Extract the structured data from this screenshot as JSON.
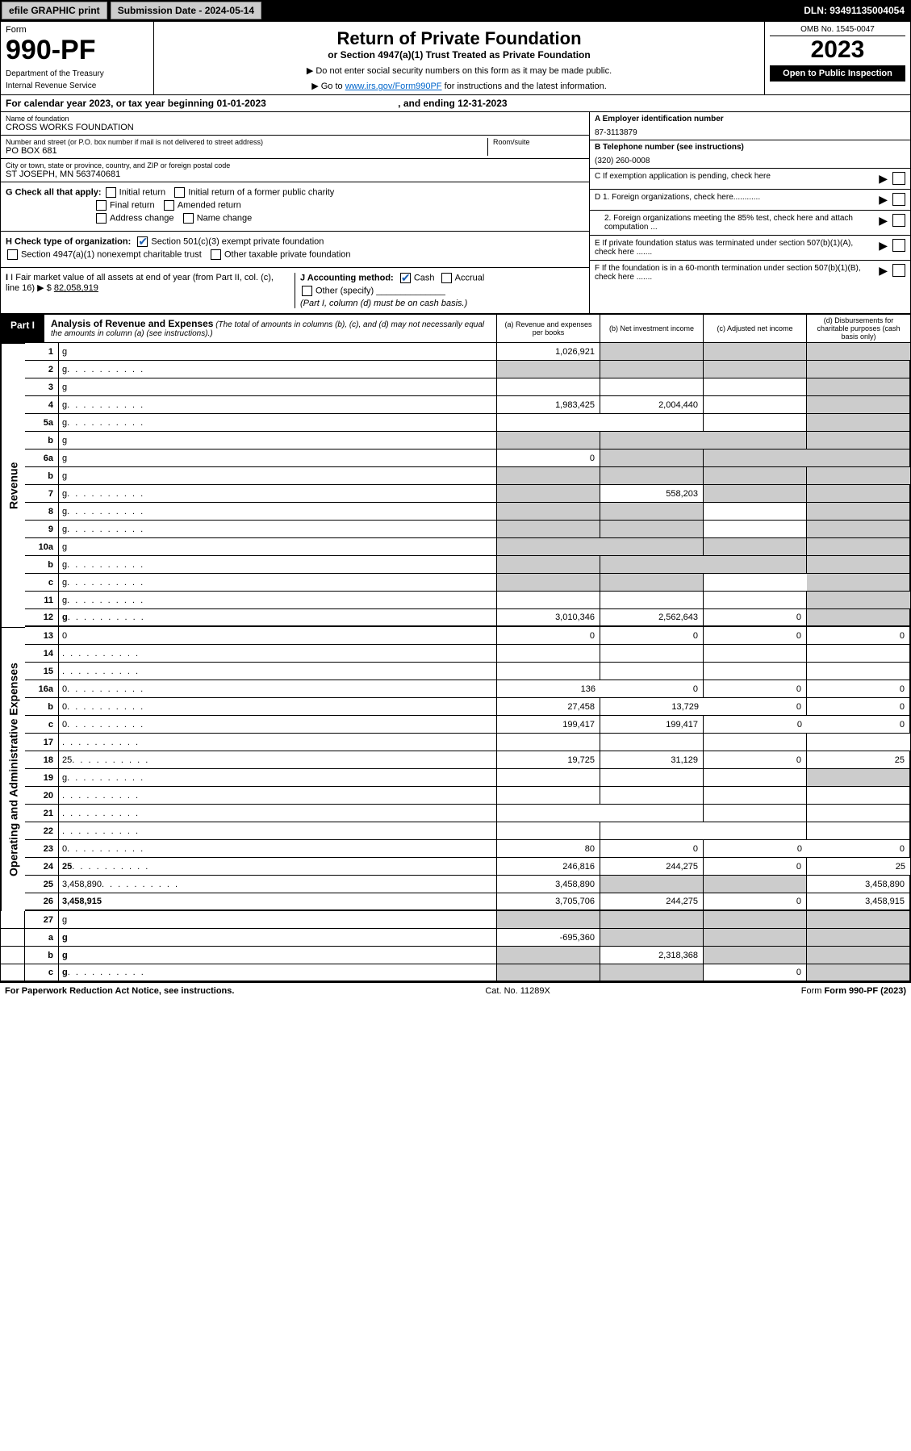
{
  "topbar": {
    "efile": "efile GRAPHIC print",
    "submission_label": "Submission Date - 2024-05-14",
    "dln": "DLN: 93491135004054"
  },
  "header": {
    "form_word": "Form",
    "form_num": "990-PF",
    "dept": "Department of the Treasury",
    "irs": "Internal Revenue Service",
    "title": "Return of Private Foundation",
    "subtitle": "or Section 4947(a)(1) Trust Treated as Private Foundation",
    "note1": "▶ Do not enter social security numbers on this form as it may be made public.",
    "note2_pre": "▶ Go to ",
    "note2_link": "www.irs.gov/Form990PF",
    "note2_post": " for instructions and the latest information.",
    "omb": "OMB No. 1545-0047",
    "year": "2023",
    "open": "Open to Public Inspection"
  },
  "cal": {
    "text": "For calendar year 2023, or tax year beginning 01-01-2023",
    "end": ", and ending 12-31-2023"
  },
  "entity": {
    "name_lbl": "Name of foundation",
    "name_val": "CROSS WORKS FOUNDATION",
    "addr_lbl": "Number and street (or P.O. box number if mail is not delivered to street address)",
    "addr_val": "PO BOX 681",
    "room_lbl": "Room/suite",
    "city_lbl": "City or town, state or province, country, and ZIP or foreign postal code",
    "city_val": "ST JOSEPH, MN  563740681",
    "ein_lbl": "A Employer identification number",
    "ein_val": "87-3113879",
    "tel_lbl": "B Telephone number (see instructions)",
    "tel_val": "(320) 260-0008",
    "c_lbl": "C If exemption application is pending, check here",
    "d1": "D 1. Foreign organizations, check here............",
    "d2": "2. Foreign organizations meeting the 85% test, check here and attach computation ...",
    "e": "E  If private foundation status was terminated under section 507(b)(1)(A), check here .......",
    "f": "F  If the foundation is in a 60-month termination under section 507(b)(1)(B), check here .......",
    "g_lbl": "G Check all that apply:",
    "g_opts": [
      "Initial return",
      "Initial return of a former public charity",
      "Final return",
      "Amended return",
      "Address change",
      "Name change"
    ],
    "h_lbl": "H Check type of organization:",
    "h_opts": [
      "Section 501(c)(3) exempt private foundation",
      "Section 4947(a)(1) nonexempt charitable trust",
      "Other taxable private foundation"
    ],
    "i_lbl": "I Fair market value of all assets at end of year (from Part II, col. (c), line 16) ▶ $",
    "i_val": "82,058,919",
    "j_lbl": "J Accounting method:",
    "j_opts": [
      "Cash",
      "Accrual",
      "Other (specify)"
    ],
    "j_note": "(Part I, column (d) must be on cash basis.)"
  },
  "part1": {
    "label": "Part I",
    "title": "Analysis of Revenue and Expenses",
    "title_note": "(The total of amounts in columns (b), (c), and (d) may not necessarily equal the amounts in column (a) (see instructions).)",
    "cols": {
      "a": "(a) Revenue and expenses per books",
      "b": "(b) Net investment income",
      "c": "(c) Adjusted net income",
      "d": "(d) Disbursements for charitable purposes (cash basis only)"
    }
  },
  "sides": {
    "rev": "Revenue",
    "exp": "Operating and Administrative Expenses"
  },
  "rows": [
    {
      "n": "1",
      "d": "g",
      "a": "1,026,921",
      "b": "g",
      "c": "g"
    },
    {
      "n": "2",
      "d": "g",
      "a": "g",
      "b": "g",
      "c": "g",
      "dots": 1
    },
    {
      "n": "3",
      "d": "g",
      "a": "",
      "b": "",
      "c": ""
    },
    {
      "n": "4",
      "d": "g",
      "a": "1,983,425",
      "b": "2,004,440",
      "c": "",
      "dots": 1
    },
    {
      "n": "5a",
      "d": "g",
      "a": "",
      "b": "",
      "c": "",
      "dots": 1
    },
    {
      "n": "b",
      "d": "g",
      "a": "g",
      "b": "g",
      "c": "g"
    },
    {
      "n": "6a",
      "d": "g",
      "a": "0",
      "b": "g",
      "c": "g"
    },
    {
      "n": "b",
      "d": "g",
      "a": "g",
      "b": "g",
      "c": "g"
    },
    {
      "n": "7",
      "d": "g",
      "a": "g",
      "b": "558,203",
      "c": "g",
      "dots": 1
    },
    {
      "n": "8",
      "d": "g",
      "a": "g",
      "b": "g",
      "c": "",
      "dots": 1
    },
    {
      "n": "9",
      "d": "g",
      "a": "g",
      "b": "g",
      "c": "",
      "dots": 1
    },
    {
      "n": "10a",
      "d": "g",
      "a": "g",
      "b": "g",
      "c": "g"
    },
    {
      "n": "b",
      "d": "g",
      "a": "g",
      "b": "g",
      "c": "g",
      "dots": 1
    },
    {
      "n": "c",
      "d": "g",
      "a": "g",
      "b": "g",
      "c": "",
      "dots": 1
    },
    {
      "n": "11",
      "d": "g",
      "a": "",
      "b": "",
      "c": "",
      "dots": 1
    },
    {
      "n": "12",
      "d": "g",
      "a": "3,010,346",
      "b": "2,562,643",
      "c": "0",
      "bold": 1,
      "dots": 1,
      "thick": 1
    }
  ],
  "rows2": [
    {
      "n": "13",
      "d": "0",
      "a": "0",
      "b": "0",
      "c": "0"
    },
    {
      "n": "14",
      "d": "",
      "a": "",
      "b": "",
      "c": "",
      "dots": 1
    },
    {
      "n": "15",
      "d": "",
      "a": "",
      "b": "",
      "c": "",
      "dots": 1
    },
    {
      "n": "16a",
      "d": "0",
      "a": "136",
      "b": "0",
      "c": "0",
      "dots": 1
    },
    {
      "n": "b",
      "d": "0",
      "a": "27,458",
      "b": "13,729",
      "c": "0",
      "dots": 1
    },
    {
      "n": "c",
      "d": "0",
      "a": "199,417",
      "b": "199,417",
      "c": "0",
      "dots": 1
    },
    {
      "n": "17",
      "d": "",
      "a": "",
      "b": "",
      "c": "",
      "dots": 1
    },
    {
      "n": "18",
      "d": "25",
      "a": "19,725",
      "b": "31,129",
      "c": "0",
      "dots": 1
    },
    {
      "n": "19",
      "d": "g",
      "a": "",
      "b": "",
      "c": "",
      "dots": 1
    },
    {
      "n": "20",
      "d": "",
      "a": "",
      "b": "",
      "c": "",
      "dots": 1
    },
    {
      "n": "21",
      "d": "",
      "a": "",
      "b": "",
      "c": "",
      "dots": 1
    },
    {
      "n": "22",
      "d": "",
      "a": "",
      "b": "",
      "c": "",
      "dots": 1
    },
    {
      "n": "23",
      "d": "0",
      "a": "80",
      "b": "0",
      "c": "0",
      "dots": 1
    },
    {
      "n": "24",
      "d": "25",
      "a": "246,816",
      "b": "244,275",
      "c": "0",
      "bold": 1,
      "dots": 1
    },
    {
      "n": "25",
      "d": "3,458,890",
      "a": "3,458,890",
      "b": "g",
      "c": "g",
      "dots": 1
    },
    {
      "n": "26",
      "d": "3,458,915",
      "a": "3,705,706",
      "b": "244,275",
      "c": "0",
      "bold": 1,
      "thick": 1
    }
  ],
  "rows3": [
    {
      "n": "27",
      "d": "g",
      "a": "g",
      "b": "g",
      "c": "g"
    },
    {
      "n": "a",
      "d": "g",
      "a": "-695,360",
      "b": "g",
      "c": "g",
      "bold": 1
    },
    {
      "n": "b",
      "d": "g",
      "a": "g",
      "b": "2,318,368",
      "c": "g",
      "bold": 1
    },
    {
      "n": "c",
      "d": "g",
      "a": "g",
      "b": "g",
      "c": "0",
      "bold": 1,
      "dots": 1,
      "thick": 1
    }
  ],
  "footer": {
    "left": "For Paperwork Reduction Act Notice, see instructions.",
    "mid": "Cat. No. 11289X",
    "right": "Form 990-PF (2023)"
  },
  "colors": {
    "link": "#0066cc",
    "grey": "#cccccc",
    "check": "#1a5fb4"
  }
}
